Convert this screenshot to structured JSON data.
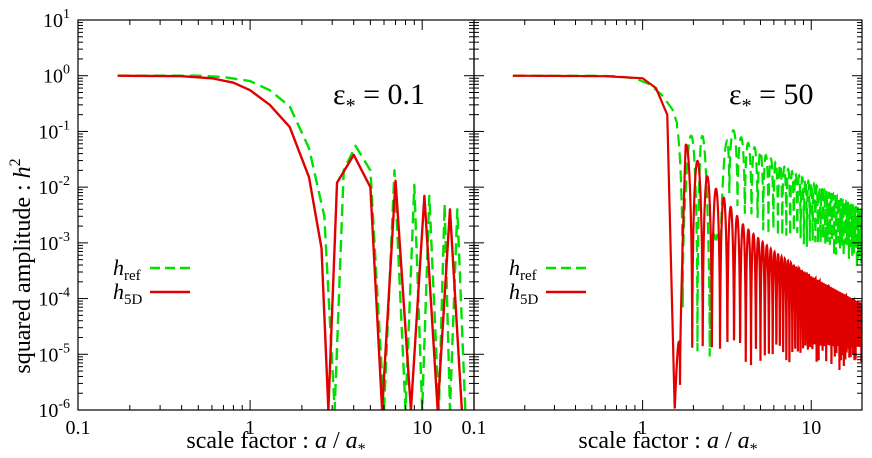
{
  "chart_data": [
    {
      "type": "line",
      "xlabel": "scale factor : a / a*",
      "xlabel_parts": {
        "prefix": "scale factor : ",
        "a": "a",
        "slash": " / ",
        "a2": "a",
        "star": "*"
      },
      "ylabel": "squared amplitude : h²",
      "ylabel_parts": {
        "prefix": "squared amplitude : ",
        "h": "h",
        "sup": "2"
      },
      "xscale": "log",
      "yscale": "log",
      "xlim": [
        0.1,
        20
      ],
      "ylim": [
        1e-06,
        10
      ],
      "x_tick_labels": [
        {
          "base": "0.1",
          "exp": ""
        },
        {
          "base": "1",
          "exp": ""
        },
        {
          "base": "10",
          "exp": ""
        }
      ],
      "x_tick_values": [
        0.1,
        1,
        10
      ],
      "y_tick_values": [
        1e-06,
        1e-05,
        0.0001,
        0.001,
        0.01,
        0.1,
        1,
        10
      ],
      "y_tick_labels": [
        {
          "base": "10",
          "exp": "-6"
        },
        {
          "base": "10",
          "exp": "-5"
        },
        {
          "base": "10",
          "exp": "-4"
        },
        {
          "base": "10",
          "exp": "-3"
        },
        {
          "base": "10",
          "exp": "-2"
        },
        {
          "base": "10",
          "exp": "-1"
        },
        {
          "base": "10",
          "exp": "0"
        },
        {
          "base": "10",
          "exp": "1"
        }
      ],
      "annotation": {
        "symbol": "ε",
        "sub": "*",
        "text": " = 0.1"
      },
      "legend_position": "center-left",
      "series": [
        {
          "name": "h_ref",
          "label_main": "h",
          "label_sub": "ref",
          "color": "#00e000",
          "dash": "dashed",
          "x": [
            0.17,
            0.5,
            0.7,
            1.0,
            1.3,
            1.7,
            2.2,
            2.7,
            3.1,
            3.5,
            4.1,
            5.0,
            6.0,
            6.9,
            8.0,
            9.0,
            10.0,
            11.0,
            12.5,
            13.5,
            14.5,
            16.0,
            17.8
          ],
          "y": [
            1.0,
            1.0,
            0.95,
            0.8,
            0.55,
            0.28,
            0.05,
            0.003,
            1e-06,
            0.02,
            0.055,
            0.02,
            1e-06,
            0.02,
            1e-06,
            0.011,
            1e-06,
            0.007,
            1e-06,
            0.005,
            1e-06,
            0.004,
            1e-06
          ]
        },
        {
          "name": "h_5D",
          "label_main": "h",
          "label_sub": "5D",
          "color": "#e00000",
          "dash": "solid",
          "x": [
            0.17,
            0.4,
            0.6,
            0.8,
            1.0,
            1.3,
            1.7,
            2.2,
            2.6,
            2.85,
            3.2,
            4.0,
            5.0,
            5.85,
            7.0,
            8.6,
            10.3,
            12.3,
            14.5,
            17.0
          ],
          "y": [
            1.0,
            0.98,
            0.9,
            0.75,
            0.55,
            0.3,
            0.12,
            0.015,
            0.0008,
            1e-06,
            0.012,
            0.038,
            0.01,
            1e-06,
            0.013,
            1e-06,
            0.007,
            1e-06,
            0.004,
            1e-06
          ]
        }
      ]
    },
    {
      "type": "line",
      "xlabel": "scale factor : a / a*",
      "xlabel_parts": {
        "prefix": "scale factor : ",
        "a": "a",
        "slash": " / ",
        "a2": "a",
        "star": "*"
      },
      "xscale": "log",
      "yscale": "log",
      "xlim": [
        0.1,
        20
      ],
      "ylim": [
        1e-06,
        10
      ],
      "x_tick_labels": [
        {
          "base": "0.1",
          "exp": ""
        },
        {
          "base": "1",
          "exp": ""
        },
        {
          "base": "10",
          "exp": ""
        }
      ],
      "x_tick_values": [
        0.1,
        1,
        10
      ],
      "y_tick_values": [
        1e-06,
        1e-05,
        0.0001,
        0.001,
        0.01,
        0.1,
        1,
        10
      ],
      "annotation": {
        "symbol": "ε",
        "sub": "*",
        "text": " = 50"
      },
      "legend_position": "center-left",
      "series": [
        {
          "name": "h_ref",
          "label_main": "h",
          "label_sub": "ref",
          "color": "#00e000",
          "dash": "dashed",
          "x": [
            0.17,
            0.5,
            0.7,
            0.9,
            1.1,
            1.3,
            1.5,
            1.8,
            2.2,
            2.7,
            3.2,
            4.0,
            6.0,
            10.0,
            20.0
          ],
          "y": [
            1.0,
            1.0,
            0.98,
            0.9,
            0.7,
            0.45,
            0.25,
            0.05,
            0.22,
            0.001,
            0.13,
            0.07,
            0.03,
            0.012,
            0.004
          ],
          "envelope_min": [
            1.0,
            1.0,
            0.98,
            0.9,
            0.7,
            0.45,
            0.25,
            1e-06,
            1e-06,
            1e-06,
            0.003,
            0.0008,
            0.0004,
            0.0002,
            0.0001
          ]
        },
        {
          "name": "h_5D",
          "label_main": "h",
          "label_sub": "5D",
          "color": "#e00000",
          "dash": "solid",
          "x": [
            0.17,
            0.6,
            1.0,
            1.2,
            1.4,
            1.55,
            1.8,
            2.2,
            2.6,
            3.1,
            4.0,
            6.0,
            10.0,
            20.0
          ],
          "y": [
            1.0,
            0.98,
            0.9,
            0.6,
            0.2,
            1e-06,
            0.06,
            0.025,
            0.011,
            0.006,
            0.002,
            0.0007,
            0.00025,
            8e-05
          ],
          "envelope_min": [
            1.0,
            0.98,
            0.9,
            0.6,
            0.2,
            1e-06,
            1e-06,
            1e-06,
            1e-06,
            1e-06,
            1e-06,
            1e-06,
            1e-06,
            1e-06
          ]
        }
      ]
    }
  ]
}
